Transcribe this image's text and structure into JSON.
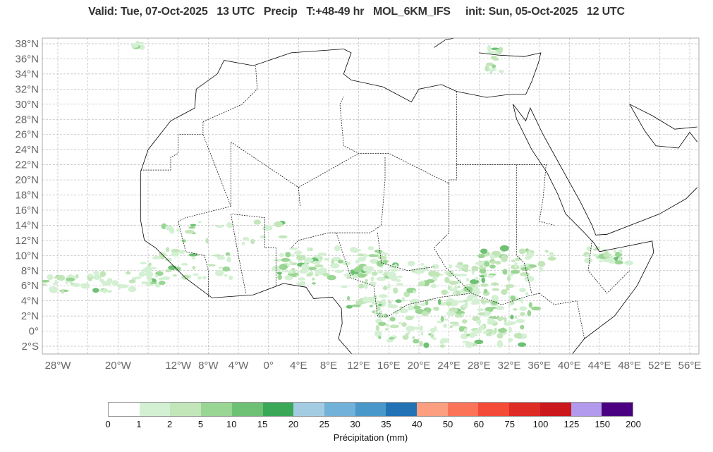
{
  "header": {
    "title": "Valid: Tue, 07-Oct-2025   13 UTC   Precip   T:+48-49 hr   MOL_6KM_IFS     init: Sun, 05-Oct-2025   12 UTC"
  },
  "map": {
    "lat_labels": [
      "38°N",
      "36°N",
      "34°N",
      "32°N",
      "30°N",
      "28°N",
      "26°N",
      "24°N",
      "22°N",
      "20°N",
      "18°N",
      "16°N",
      "14°N",
      "12°N",
      "10°N",
      "8°N",
      "6°N",
      "4°N",
      "2°N",
      "0°",
      "2°S"
    ],
    "lon_labels": [
      {
        "lon": -28,
        "text": "28°W"
      },
      {
        "lon": -20,
        "text": "20°W"
      },
      {
        "lon": -12,
        "text": "12°W"
      },
      {
        "lon": -8,
        "text": "8°W"
      },
      {
        "lon": -4,
        "text": "4°W"
      },
      {
        "lon": 0,
        "text": "0°"
      },
      {
        "lon": 4,
        "text": "4°E"
      },
      {
        "lon": 8,
        "text": "8°E"
      },
      {
        "lon": 12,
        "text": "12°E"
      },
      {
        "lon": 16,
        "text": "16°E"
      },
      {
        "lon": 20,
        "text": "20°E"
      },
      {
        "lon": 24,
        "text": "24°E"
      },
      {
        "lon": 28,
        "text": "28°E"
      },
      {
        "lon": 32,
        "text": "32°E"
      },
      {
        "lon": 36,
        "text": "36°E"
      },
      {
        "lon": 40,
        "text": "40°E"
      },
      {
        "lon": 44,
        "text": "44°E"
      },
      {
        "lon": 48,
        "text": "48°E"
      },
      {
        "lon": 52,
        "text": "52°E"
      },
      {
        "lon": 56,
        "text": "56°E"
      }
    ]
  },
  "colorbar": {
    "label": "Précipitation (mm)",
    "ticks": [
      "0",
      "1",
      "2",
      "5",
      "10",
      "15",
      "20",
      "25",
      "30",
      "35",
      "40",
      "50",
      "60",
      "75",
      "100",
      "125",
      "150",
      "200"
    ],
    "colors": [
      "#ffffff",
      "#d3f0d3",
      "#c2e6b9",
      "#99d593",
      "#6ec174",
      "#3ba858",
      "#a3cce3",
      "#73b2d8",
      "#4a98c9",
      "#2372b5",
      "#fc9f81",
      "#fb7459",
      "#f44a38",
      "#de2b26",
      "#cb181d",
      "#b29aec",
      "#4b0082"
    ]
  }
}
